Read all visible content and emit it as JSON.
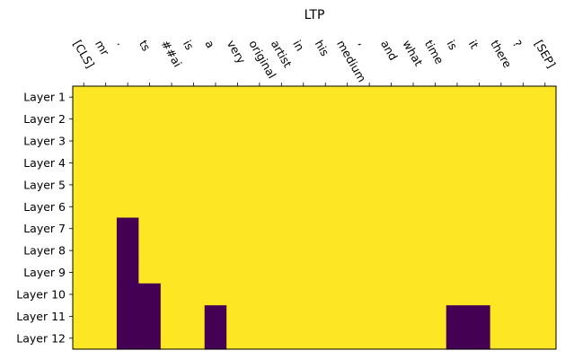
{
  "chart_data": {
    "type": "heatmap",
    "title": "LTP",
    "xlabel": "",
    "ylabel": "",
    "x_tick_position": "top",
    "x_tick_rotation_deg": 60,
    "colormap": "viridis (binary: 0 → dark purple, 1 → yellow)",
    "colors": {
      "low": "#440154",
      "high": "#fde725"
    },
    "x": [
      "[CLS]",
      "mr",
      ".",
      "ts",
      "##ai",
      "is",
      "a",
      "very",
      "original",
      "artist",
      "in",
      "his",
      "medium",
      ",",
      "and",
      "what",
      "time",
      "is",
      "it",
      "there",
      "?",
      "[SEP]"
    ],
    "y": [
      "Layer 1",
      "Layer 2",
      "Layer 3",
      "Layer 4",
      "Layer 5",
      "Layer 6",
      "Layer 7",
      "Layer 8",
      "Layer 9",
      "Layer 10",
      "Layer 11",
      "Layer 12"
    ],
    "values": [
      [
        1,
        1,
        1,
        1,
        1,
        1,
        1,
        1,
        1,
        1,
        1,
        1,
        1,
        1,
        1,
        1,
        1,
        1,
        1,
        1,
        1,
        1
      ],
      [
        1,
        1,
        1,
        1,
        1,
        1,
        1,
        1,
        1,
        1,
        1,
        1,
        1,
        1,
        1,
        1,
        1,
        1,
        1,
        1,
        1,
        1
      ],
      [
        1,
        1,
        1,
        1,
        1,
        1,
        1,
        1,
        1,
        1,
        1,
        1,
        1,
        1,
        1,
        1,
        1,
        1,
        1,
        1,
        1,
        1
      ],
      [
        1,
        1,
        1,
        1,
        1,
        1,
        1,
        1,
        1,
        1,
        1,
        1,
        1,
        1,
        1,
        1,
        1,
        1,
        1,
        1,
        1,
        1
      ],
      [
        1,
        1,
        1,
        1,
        1,
        1,
        1,
        1,
        1,
        1,
        1,
        1,
        1,
        1,
        1,
        1,
        1,
        1,
        1,
        1,
        1,
        1
      ],
      [
        1,
        1,
        1,
        1,
        1,
        1,
        1,
        1,
        1,
        1,
        1,
        1,
        1,
        1,
        1,
        1,
        1,
        1,
        1,
        1,
        1,
        1
      ],
      [
        1,
        1,
        0,
        1,
        1,
        1,
        1,
        1,
        1,
        1,
        1,
        1,
        1,
        1,
        1,
        1,
        1,
        1,
        1,
        1,
        1,
        1
      ],
      [
        1,
        1,
        0,
        1,
        1,
        1,
        1,
        1,
        1,
        1,
        1,
        1,
        1,
        1,
        1,
        1,
        1,
        1,
        1,
        1,
        1,
        1
      ],
      [
        1,
        1,
        0,
        1,
        1,
        1,
        1,
        1,
        1,
        1,
        1,
        1,
        1,
        1,
        1,
        1,
        1,
        1,
        1,
        1,
        1,
        1
      ],
      [
        1,
        1,
        0,
        0,
        1,
        1,
        1,
        1,
        1,
        1,
        1,
        1,
        1,
        1,
        1,
        1,
        1,
        1,
        1,
        1,
        1,
        1
      ],
      [
        1,
        1,
        0,
        0,
        1,
        1,
        0,
        1,
        1,
        1,
        1,
        1,
        1,
        1,
        1,
        1,
        1,
        0,
        0,
        1,
        1,
        1
      ],
      [
        1,
        1,
        0,
        0,
        1,
        1,
        0,
        1,
        1,
        1,
        1,
        1,
        1,
        1,
        1,
        1,
        1,
        0,
        0,
        1,
        1,
        1
      ]
    ]
  }
}
